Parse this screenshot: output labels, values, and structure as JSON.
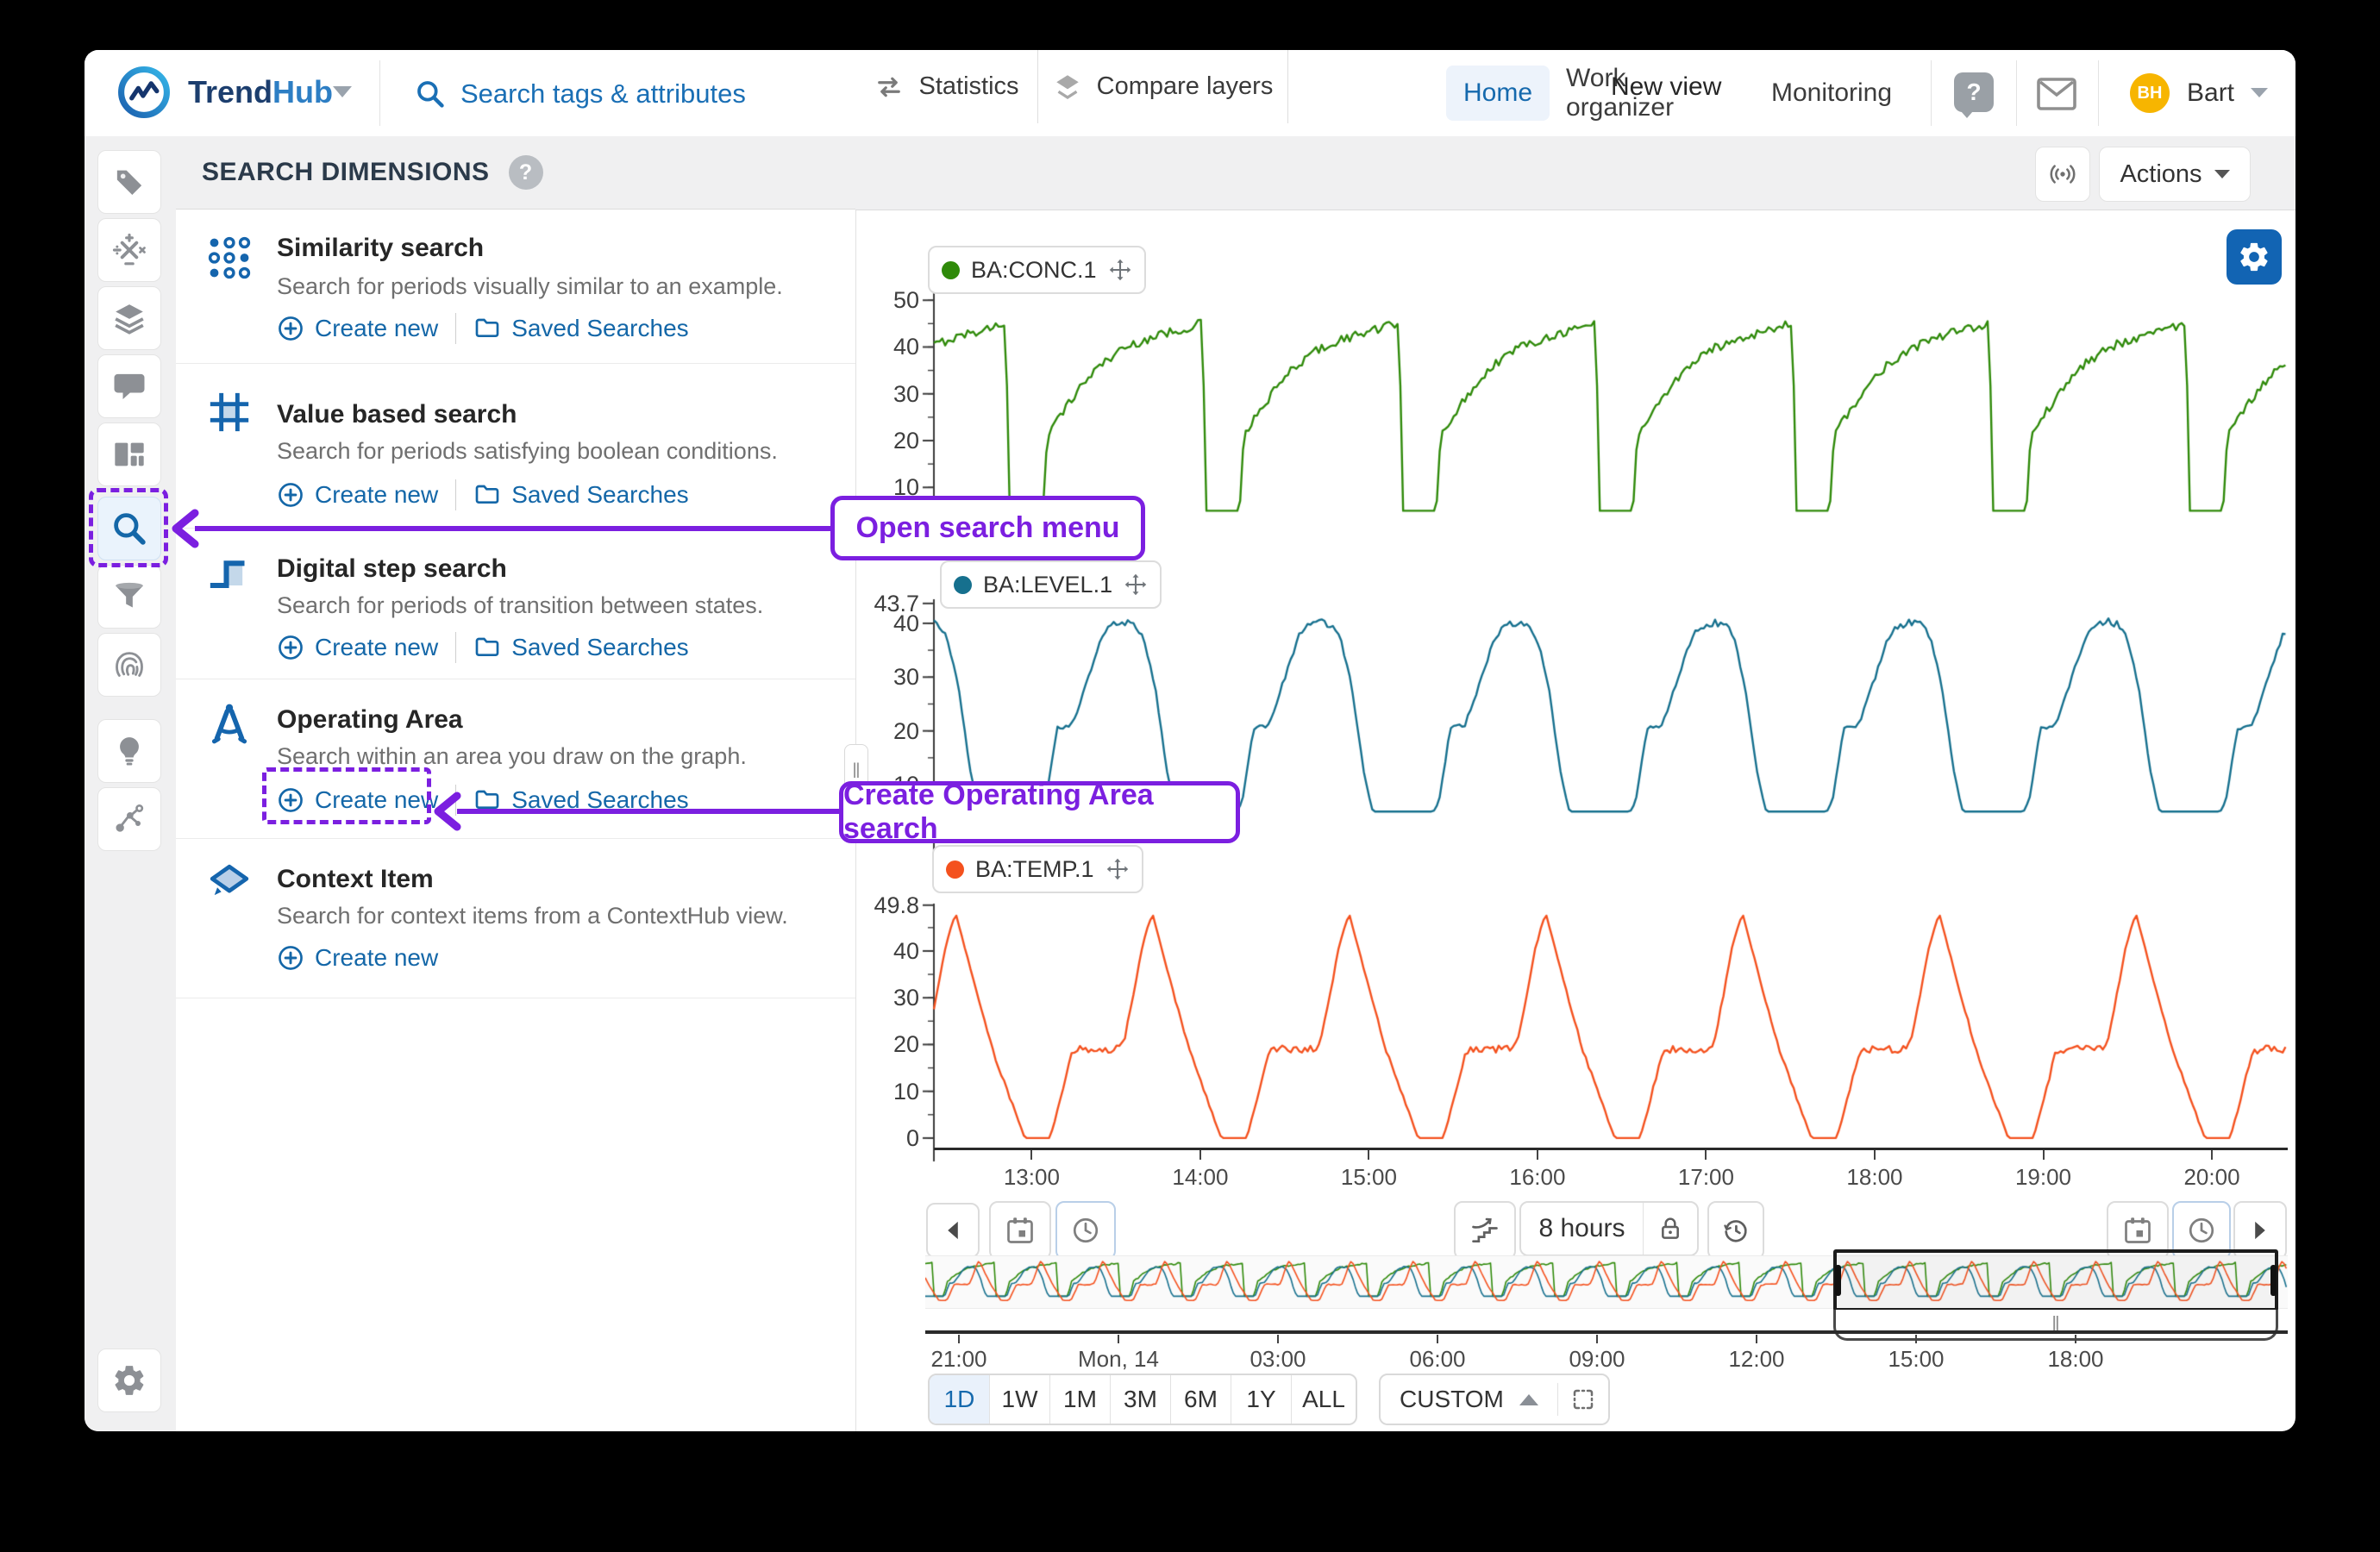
{
  "topbar": {
    "brand": {
      "trend": "Trend",
      "hub": "Hub"
    },
    "search_placeholder": "Search tags & attributes",
    "nav": [
      "Home",
      "Work organizer",
      "Monitoring"
    ],
    "active_nav": "Home",
    "help_glyph": "?",
    "user": {
      "initials": "BH",
      "name": "Bart"
    }
  },
  "sidebar": {
    "icons": [
      "tag",
      "calculations",
      "layers",
      "comments",
      "dashboard",
      "search",
      "filter",
      "fingerprint",
      "recommendations",
      "context-graph",
      "settings"
    ],
    "active": "search"
  },
  "search_panel": {
    "title": "SEARCH DIMENSIONS",
    "help_glyph": "?",
    "items": [
      {
        "title": "Similarity search",
        "description": "Search for periods visually similar to an example.",
        "create_label": "Create new",
        "saved_label": "Saved Searches"
      },
      {
        "title": "Value based search",
        "description": "Search for periods satisfying boolean conditions.",
        "create_label": "Create new",
        "saved_label": "Saved Searches"
      },
      {
        "title": "Digital step search",
        "description": "Search for periods of transition between states.",
        "create_label": "Create new",
        "saved_label": "Saved Searches"
      },
      {
        "title": "Operating Area",
        "description": "Search within an area you draw on the graph.",
        "create_label": "Create new",
        "saved_label": "Saved Searches"
      },
      {
        "title": "Context Item",
        "description": "Search for context items from a ContextHub view.",
        "create_label": "Create new"
      }
    ]
  },
  "chart_header": {
    "statistics": "Statistics",
    "compare_layers": "Compare layers",
    "view_title": "New view",
    "actions": "Actions"
  },
  "timebar": {
    "duration_label": "8 hours",
    "range_buttons": [
      "1D",
      "1W",
      "1M",
      "3M",
      "6M",
      "1Y",
      "ALL"
    ],
    "active_range": "1D",
    "custom_label": "CUSTOM"
  },
  "ui": {
    "resize_glyph": "‖"
  },
  "annotations": {
    "open_search": "Open search menu",
    "create_operating_area": "Create Operating Area search",
    "accent": "#7b1fe0"
  },
  "colors": {
    "link_blue": "#1467a8",
    "accent_blue": "#1569ad",
    "gear_button": "#1264b3",
    "avatar": "#f7b500",
    "series_green": "#2f8a0a",
    "series_blue": "#16708e",
    "series_orange": "#f4511e"
  },
  "chart_data": {
    "type": "line",
    "x_axis": "time of day (Mon, 14)",
    "visible_window": "8 hours (≈12:25 – 20:27)",
    "x_ticks_main": [
      {
        "t": 13,
        "label": "13:00"
      },
      {
        "t": 14,
        "label": "14:00"
      },
      {
        "t": 15,
        "label": "15:00"
      },
      {
        "t": 16,
        "label": "16:00"
      },
      {
        "t": 17,
        "label": "17:00"
      },
      {
        "t": 18,
        "label": "18:00"
      },
      {
        "t": 19,
        "label": "19:00"
      },
      {
        "t": 20,
        "label": "20:00"
      }
    ],
    "overview_ticks": [
      "21:00",
      "Mon, 14",
      "03:00",
      "06:00",
      "09:00",
      "12:00",
      "15:00",
      "18:00"
    ],
    "series": [
      {
        "name": "BA:CONC.1",
        "color": "#2f8a0a",
        "period_min": 70,
        "phase_h": 12.85,
        "y_ticks": [
          50,
          40,
          30,
          20,
          10
        ],
        "pattern": [
          [
            0,
            45.2,
            0
          ],
          [
            0.6,
            5,
            0
          ],
          [
            13,
            5,
            0
          ],
          [
            14.5,
            21,
            0.5
          ],
          [
            17,
            23.5,
            0.8
          ],
          [
            21,
            27,
            0.9
          ],
          [
            27,
            32,
            0.9
          ],
          [
            33,
            36,
            0.9
          ],
          [
            41,
            39.5,
            1.0
          ],
          [
            49,
            41.5,
            1.0
          ],
          [
            57,
            43,
            1.0
          ],
          [
            64,
            44,
            1.0
          ],
          [
            69.5,
            45.2,
            0.8
          ],
          [
            70,
            45.2,
            0
          ]
        ]
      },
      {
        "name": "BA:LEVEL.1",
        "color": "#16708e",
        "period_min": 70,
        "phase_h": 12.7,
        "y_ticks": [
          43.7,
          40,
          30,
          20,
          10
        ],
        "pattern": [
          [
            0,
            5,
            0
          ],
          [
            21,
            5,
            0
          ],
          [
            23,
            7,
            0.2
          ],
          [
            27,
            20.5,
            0.3
          ],
          [
            32,
            21,
            0.4
          ],
          [
            34,
            23.5,
            0.4
          ],
          [
            43,
            37.5,
            0.5
          ],
          [
            46,
            39.5,
            0.7
          ],
          [
            51,
            40.2,
            0.8
          ],
          [
            55,
            39.8,
            0.7
          ],
          [
            58,
            37,
            0.5
          ],
          [
            62,
            28,
            0.3
          ],
          [
            66,
            13,
            0.2
          ],
          [
            69,
            5.5,
            0
          ],
          [
            70,
            5,
            0
          ]
        ]
      },
      {
        "name": "BA:TEMP.1",
        "color": "#f4511e",
        "period_min": 70,
        "phase_h": 12.55,
        "y_ticks": [
          49.8,
          40,
          30,
          20,
          10,
          0
        ],
        "pattern": [
          [
            0,
            48,
            0
          ],
          [
            7,
            32,
            0.3
          ],
          [
            13,
            19,
            0.4
          ],
          [
            19,
            9,
            0.4
          ],
          [
            23,
            2.5,
            0.2
          ],
          [
            24.5,
            0,
            0
          ],
          [
            33.5,
            0,
            0
          ],
          [
            36,
            5.5,
            0.3
          ],
          [
            41.5,
            18.5,
            0.6
          ],
          [
            44,
            19,
            0.8
          ],
          [
            58,
            19,
            0.8
          ],
          [
            60,
            21,
            0.5
          ],
          [
            63,
            30,
            0.4
          ],
          [
            66,
            40,
            0.3
          ],
          [
            68.5,
            45.5,
            0.2
          ],
          [
            70,
            48,
            0
          ]
        ]
      }
    ],
    "main_charts": [
      {
        "series": 0,
        "y_top": 52.8,
        "y_bottom": -3.4
      },
      {
        "series": 1,
        "y_top": 44.8,
        "y_bottom": -4.1
      },
      {
        "series": 2,
        "y_top": 50.5,
        "y_bottom": -6.1
      }
    ],
    "main_x_range_h": [
      12.42,
      20.45
    ],
    "overview": {
      "x_range_h": [
        -3.63,
        21.98
      ],
      "y_top": 52,
      "y_bottom": -6,
      "series": [
        0,
        1,
        2
      ]
    }
  }
}
